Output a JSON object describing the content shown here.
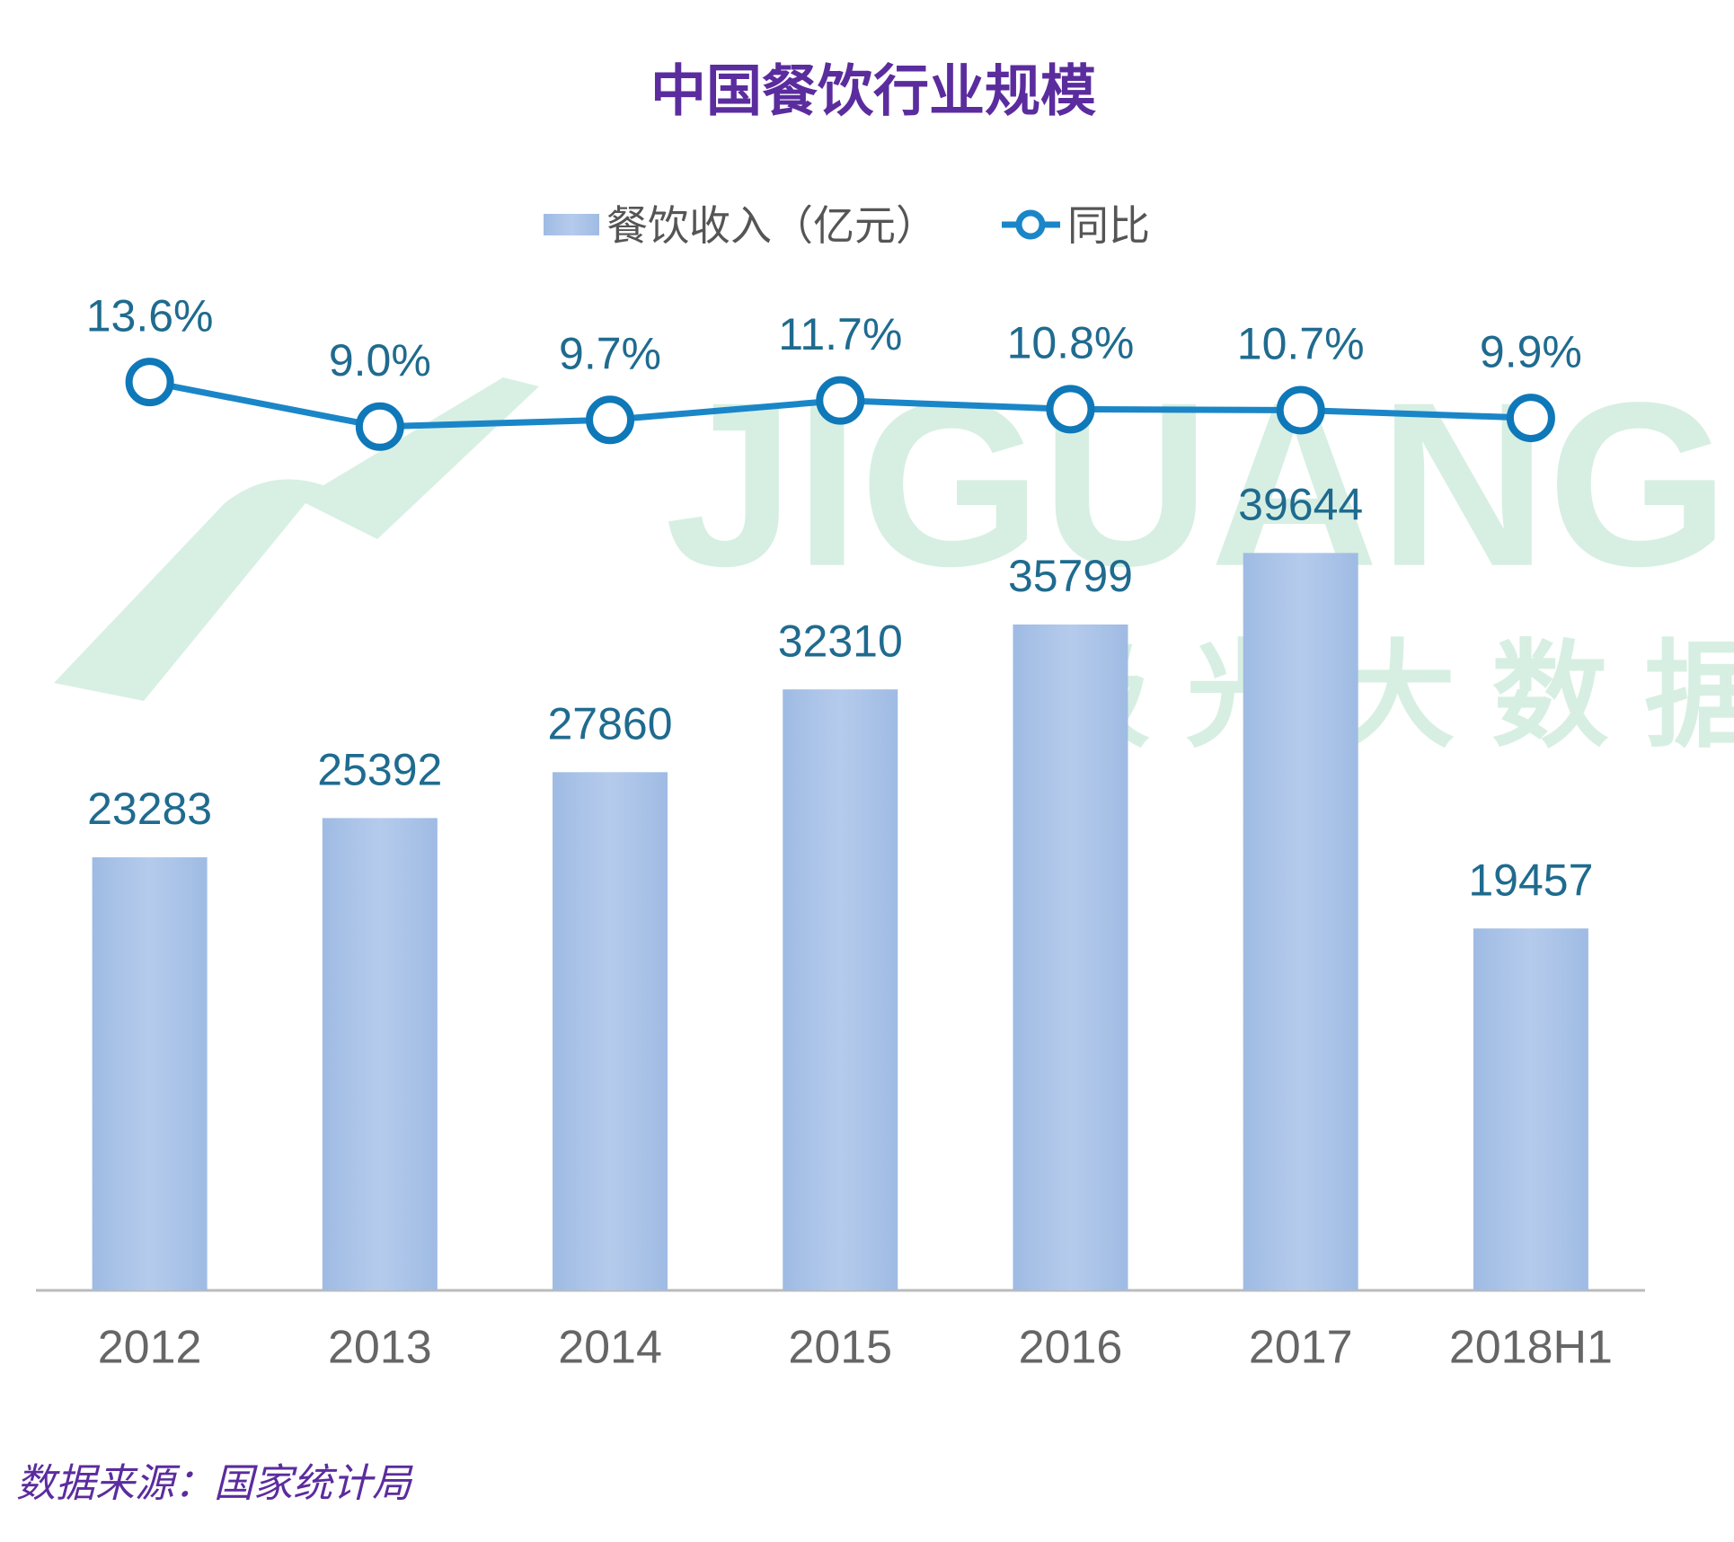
{
  "chart_data": {
    "type": "bar",
    "title": "中国餐饮行业规模",
    "categories": [
      "2012",
      "2013",
      "2014",
      "2015",
      "2016",
      "2017",
      "2018H1"
    ],
    "series": [
      {
        "name": "餐饮收入（亿元）",
        "type": "bar",
        "color": "#a9c2e6",
        "values": [
          23283,
          25392,
          27860,
          32310,
          35799,
          39644,
          19457
        ]
      },
      {
        "name": "同比",
        "type": "line",
        "axis": "y2",
        "color": "#1a86c8",
        "values": [
          13.6,
          9.0,
          9.7,
          11.7,
          10.8,
          10.7,
          9.9
        ],
        "value_labels": [
          "13.6%",
          "9.0%",
          "9.7%",
          "11.7%",
          "10.8%",
          "10.7%",
          "9.9%"
        ]
      }
    ],
    "ylim": [
      0,
      60000
    ],
    "y2lim": [
      -80,
      35
    ],
    "legend": "top",
    "source": "数据来源：国家统计局",
    "watermark": [
      "JIGUANG",
      "极光大数据"
    ]
  }
}
